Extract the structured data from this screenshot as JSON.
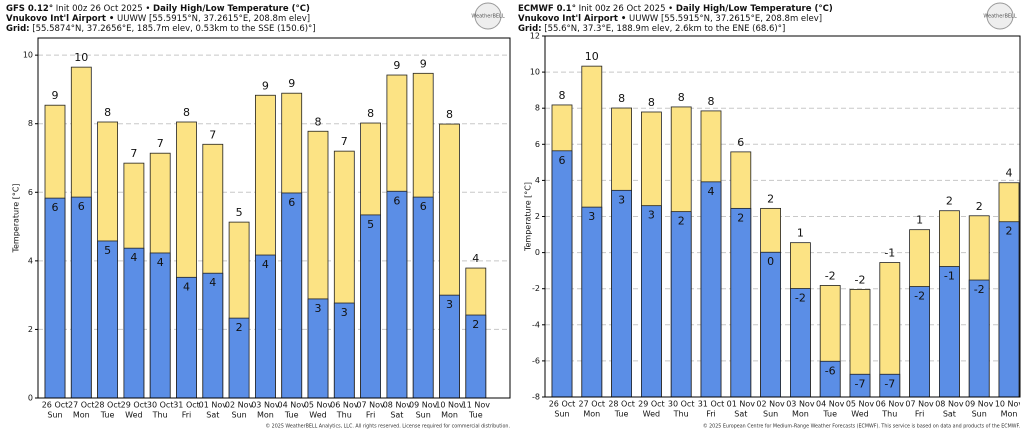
{
  "chart_data": [
    {
      "type": "bar",
      "model": "GFS 0.12°",
      "init": "Init 00z 26 Oct 2025 •",
      "title": "Daily High/Low Temperature (°C)",
      "location": "Vnukovo Int'l Airport •",
      "station": "UUWW [55.5915°N, 37.2615°E, 208.8m elev]",
      "grid_label": "Grid:",
      "grid_info": "[55.5874°N, 37.2656°E, 185.7m elev, 0.53km to the SSE (150.6)°]",
      "logo": "WeatherBELL",
      "ylabel": "Temperature [°C]",
      "footer": "© 2025 WeatherBELL Analytics, LLC. All rights reserved. License required for commercial distribution.",
      "categories": [
        "26 Oct",
        "27 Oct",
        "28 Oct",
        "29 Oct",
        "30 Oct",
        "31 Oct",
        "01 Nov",
        "02 Nov",
        "03 Nov",
        "04 Nov",
        "05 Nov",
        "06 Nov",
        "07 Nov",
        "08 Nov",
        "09 Nov",
        "10 Nov",
        "11 Nov"
      ],
      "days": [
        "Sun",
        "Mon",
        "Tue",
        "Wed",
        "Thu",
        "Fri",
        "Sat",
        "Sun",
        "Mon",
        "Tue",
        "Wed",
        "Thu",
        "Fri",
        "Sat",
        "Sun",
        "Mon",
        "Tue"
      ],
      "series": [
        {
          "color": "#fce384",
          "values": [
            8.54,
            9.65,
            8.05,
            6.85,
            7.14,
            8.05,
            7.4,
            5.13,
            8.83,
            8.89,
            7.78,
            7.2,
            8.02,
            9.42,
            9.47,
            7.99,
            3.79
          ],
          "value_labels": [
            "9",
            "10",
            "8",
            "7",
            "7",
            "8",
            "7",
            "5",
            "9",
            "9",
            "8",
            "7",
            "8",
            "9",
            "9",
            "8",
            "4"
          ]
        },
        {
          "color": "#5b8ee6",
          "values": [
            5.83,
            5.86,
            4.58,
            4.37,
            4.23,
            3.52,
            3.64,
            2.33,
            4.17,
            5.98,
            2.89,
            2.77,
            5.34,
            6.03,
            5.86,
            3.0,
            2.42
          ],
          "value_labels": [
            "6",
            "6",
            "5",
            "4",
            "4",
            "4",
            "4",
            "2",
            "4",
            "6",
            "3",
            "3",
            "5",
            "6",
            "6",
            "3",
            "2"
          ]
        }
      ],
      "ylim": [
        0,
        10.5
      ],
      "yticks": [
        0,
        2,
        4,
        6,
        8,
        10
      ],
      "grid": true
    },
    {
      "type": "bar",
      "model": "ECMWF 0.1°",
      "init": "Init 00z 26 Oct 2025 •",
      "title": "Daily High/Low Temperature (°C)",
      "location": "Vnukovo Int'l Airport •",
      "station": "UUWW [55.5915°N, 37.2615°E, 208.8m elev]",
      "grid_label": "Grid:",
      "grid_info": "[55.6°N, 37.3°E, 188.9m elev, 2.6km to the ENE (68.6)°]",
      "logo": "WeatherBELL",
      "ylabel": "Temperature [°C]",
      "footer": "© 2025 European Centre for Medium-Range Weather Forecasts (ECMWF). This service is based on data and products of the ECMWF.",
      "categories": [
        "26 Oct",
        "27 Oct",
        "28 Oct",
        "29 Oct",
        "30 Oct",
        "31 Oct",
        "01 Nov",
        "02 Nov",
        "03 Nov",
        "04 Nov",
        "05 Nov",
        "06 Nov",
        "07 Nov",
        "08 Nov",
        "09 Nov",
        "10 Nov"
      ],
      "days": [
        "Sun",
        "Mon",
        "Tue",
        "Wed",
        "Thu",
        "Fri",
        "Sat",
        "Sun",
        "Mon",
        "Tue",
        "Wed",
        "Thu",
        "Fri",
        "Sat",
        "Sun",
        "Mon"
      ],
      "series": [
        {
          "color": "#fce384",
          "values": [
            8.18,
            10.33,
            8.01,
            7.79,
            8.07,
            7.85,
            5.58,
            2.45,
            0.55,
            -1.82,
            -2.04,
            -0.55,
            1.27,
            2.32,
            2.04,
            3.87
          ],
          "value_labels": [
            "8",
            "10",
            "8",
            "8",
            "8",
            "8",
            "6",
            "2",
            "1",
            "-2",
            "-2",
            "-1",
            "1",
            "2",
            "2",
            "4"
          ]
        },
        {
          "color": "#5b8ee6",
          "values": [
            5.64,
            2.52,
            3.45,
            2.6,
            2.27,
            3.92,
            2.45,
            0.02,
            -1.99,
            -6.02,
            -6.74,
            -6.74,
            -1.88,
            -0.77,
            -1.52,
            1.71
          ],
          "value_labels": [
            "6",
            "3",
            "3",
            "3",
            "2",
            "4",
            "2",
            "0",
            "-2",
            "-6",
            "-7",
            "-7",
            "-2",
            "-1",
            "-2",
            "2"
          ]
        }
      ],
      "ylim": [
        -8,
        12
      ],
      "yticks": [
        -8,
        -6,
        -4,
        -2,
        0,
        2,
        4,
        6,
        8,
        10,
        12
      ],
      "grid": true
    }
  ]
}
